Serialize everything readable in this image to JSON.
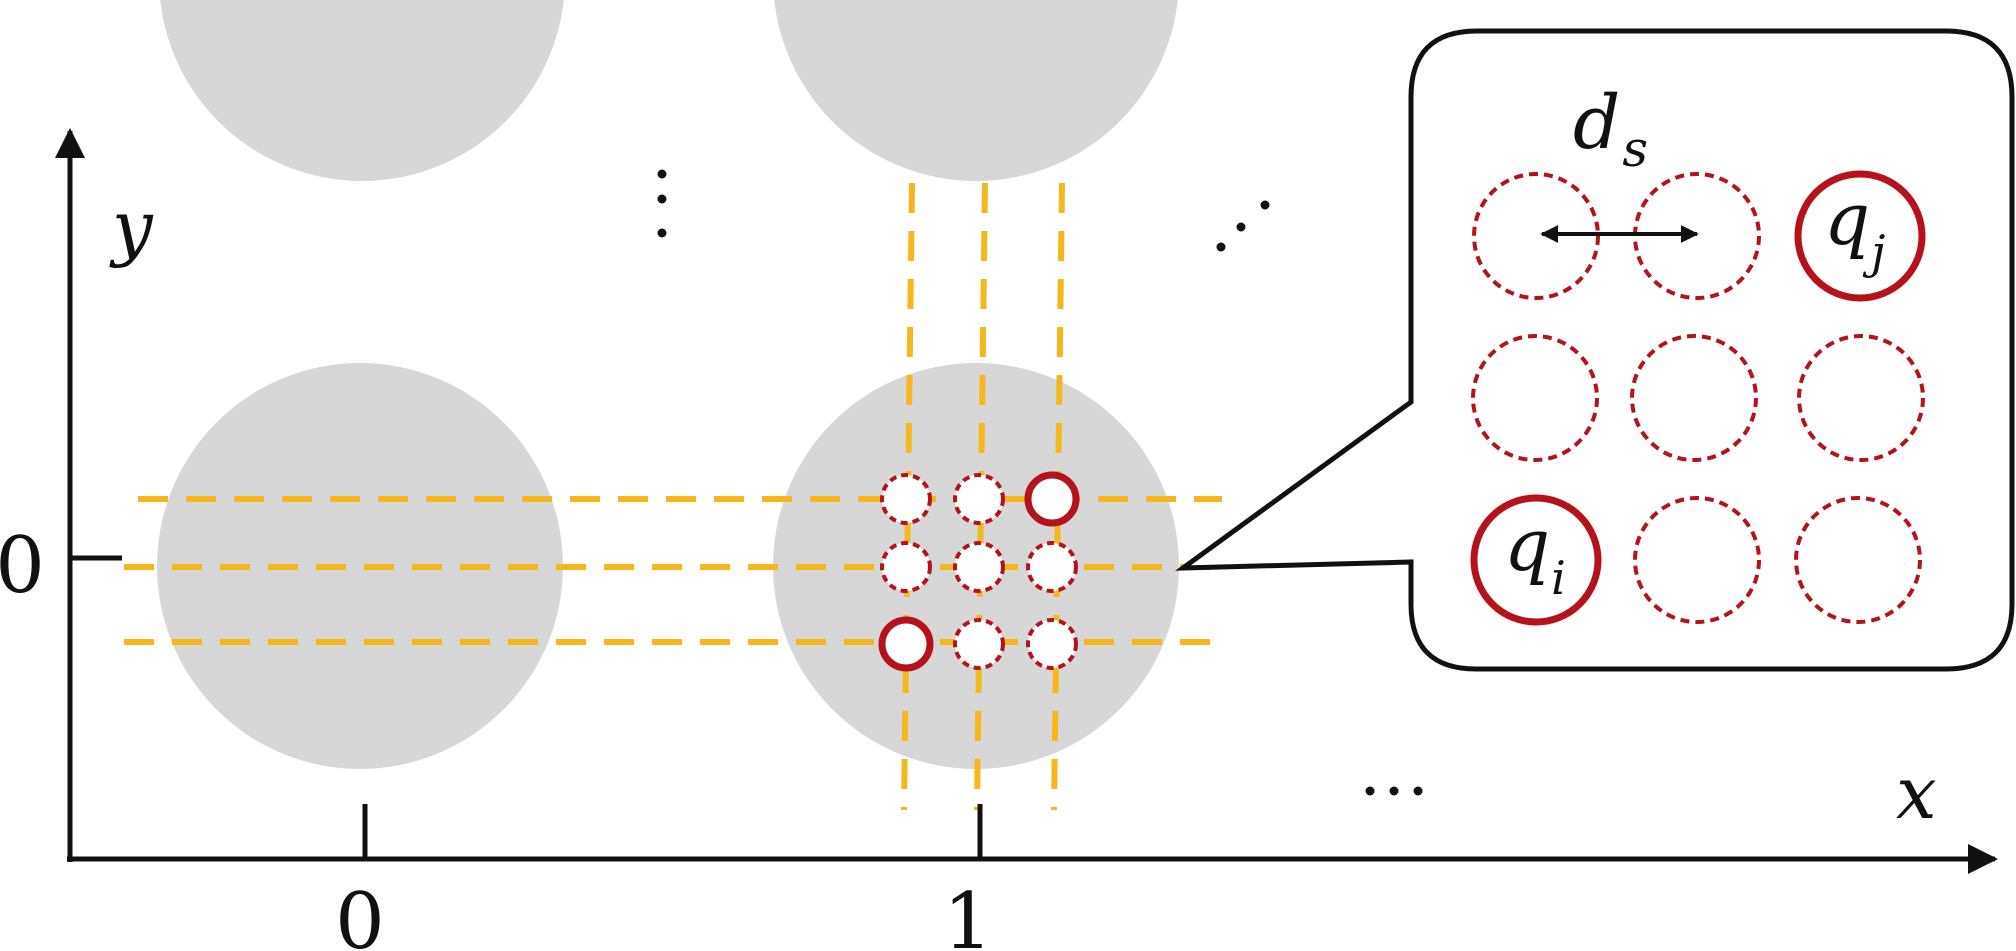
{
  "axes": {
    "x_label": "x",
    "y_label": "y",
    "x_ticks": [
      "0",
      "1"
    ],
    "y_ticks": [
      "0"
    ]
  },
  "callout": {
    "spacing_label": "d",
    "spacing_subscript": "s",
    "site_i_label": "q",
    "site_i_subscript": "i",
    "site_j_label": "q",
    "site_j_subscript": "j"
  },
  "colors": {
    "cell_fill": "#d7d7d7",
    "guide_line": "#f4b81c",
    "site": "#b5121b",
    "ink": "#111111"
  },
  "icons": {
    "vertical_ellipsis": "vertical-ellipsis-icon",
    "diagonal_ellipsis": "diagonal-ellipsis-icon",
    "horizontal_ellipsis": "horizontal-ellipsis-icon"
  }
}
